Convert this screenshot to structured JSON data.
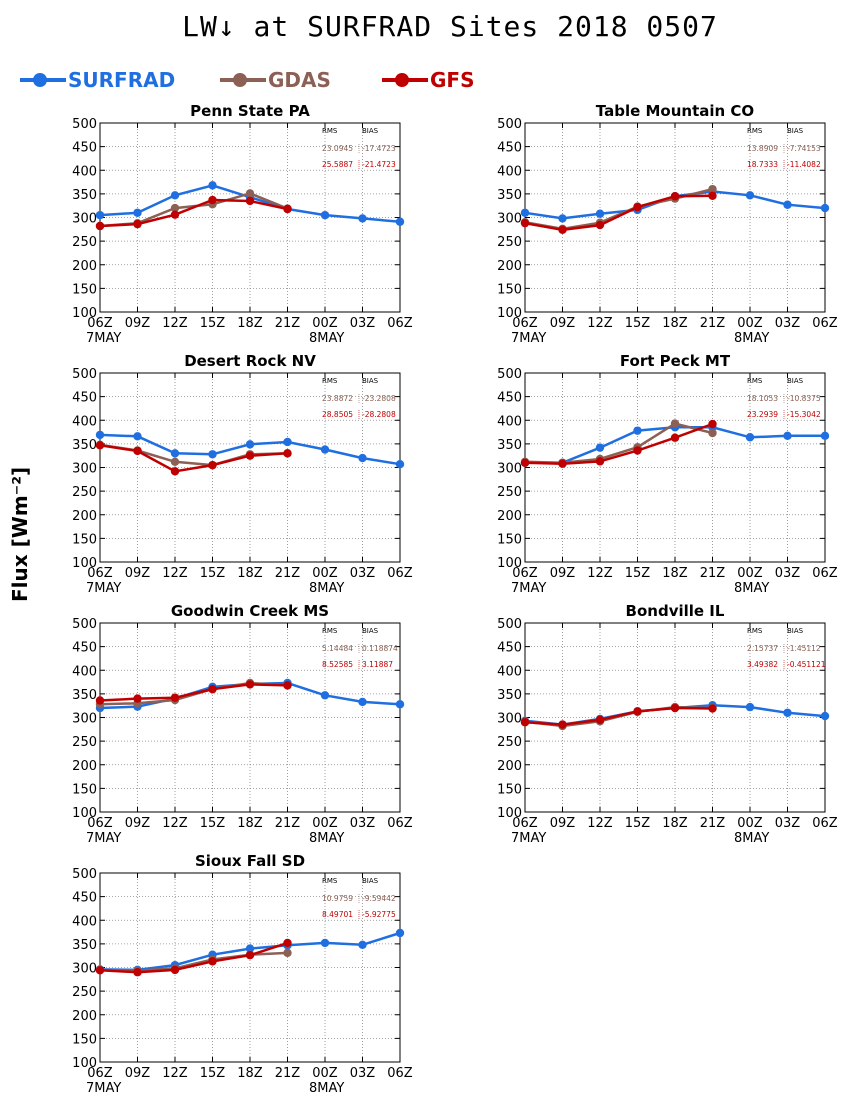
{
  "title": "LW↓ at SURFRAD Sites   2018 0507",
  "ylabel": "Flux [Wm⁻²]",
  "legend": [
    {
      "name": "SURFRAD",
      "color": "#1f6fe0"
    },
    {
      "name": "GDAS",
      "color": "#8c6054"
    },
    {
      "name": "GFS",
      "color": "#c00000"
    }
  ],
  "axis": {
    "x_ticks": [
      "06Z",
      "09Z",
      "12Z",
      "15Z",
      "18Z",
      "21Z",
      "00Z",
      "03Z",
      "06Z"
    ],
    "x_date_labels": [
      "7MAY",
      "8MAY"
    ],
    "y_ticks": [
      "100",
      "150",
      "200",
      "250",
      "300",
      "350",
      "400",
      "450",
      "500"
    ],
    "stats_headers": [
      "RMS",
      "BIAS"
    ]
  },
  "chart_data": [
    {
      "type": "line",
      "title": "Penn State PA",
      "x": [
        "06Z",
        "09Z",
        "12Z",
        "15Z",
        "18Z",
        "21Z",
        "00Z",
        "03Z",
        "06Z"
      ],
      "ylim": [
        100,
        500
      ],
      "grid": true,
      "stats": {
        "GDAS": {
          "rms": "23.0945",
          "bias": "-17.4723"
        },
        "GFS": {
          "rms": "25.5887",
          "bias": "-21.4723"
        }
      },
      "series": [
        {
          "name": "SURFRAD",
          "values": [
            305,
            310,
            347,
            368,
            343,
            318,
            305,
            298,
            291
          ]
        },
        {
          "name": "GDAS",
          "values": [
            282,
            288,
            320,
            328,
            351,
            319,
            null,
            null,
            null
          ]
        },
        {
          "name": "GFS",
          "values": [
            282,
            286,
            306,
            337,
            335,
            318,
            null,
            null,
            null
          ]
        }
      ]
    },
    {
      "type": "line",
      "title": "Table Mountain CO",
      "x": [
        "06Z",
        "09Z",
        "12Z",
        "15Z",
        "18Z",
        "21Z",
        "00Z",
        "03Z",
        "06Z"
      ],
      "ylim": [
        100,
        500
      ],
      "grid": true,
      "stats": {
        "GDAS": {
          "rms": "13.8909",
          "bias": "-7.74153"
        },
        "GFS": {
          "rms": "18.7333",
          "bias": "-11.4082"
        }
      },
      "series": [
        {
          "name": "SURFRAD",
          "values": [
            310,
            298,
            308,
            316,
            345,
            355,
            347,
            327,
            320
          ]
        },
        {
          "name": "GDAS",
          "values": [
            290,
            276,
            289,
            323,
            340,
            360,
            null,
            null,
            null
          ]
        },
        {
          "name": "GFS",
          "values": [
            288,
            274,
            284,
            322,
            345,
            346,
            null,
            null,
            null
          ]
        }
      ]
    },
    {
      "type": "line",
      "title": "Desert Rock NV",
      "x": [
        "06Z",
        "09Z",
        "12Z",
        "15Z",
        "18Z",
        "21Z",
        "00Z",
        "03Z",
        "06Z"
      ],
      "ylim": [
        100,
        500
      ],
      "grid": true,
      "stats": {
        "GDAS": {
          "rms": "23.8872",
          "bias": "-23.2808"
        },
        "GFS": {
          "rms": "28.8505",
          "bias": "-28.2808"
        }
      },
      "series": [
        {
          "name": "SURFRAD",
          "values": [
            369,
            366,
            330,
            328,
            349,
            354,
            338,
            320,
            307
          ]
        },
        {
          "name": "GDAS",
          "values": [
            348,
            336,
            312,
            305,
            328,
            330,
            null,
            null,
            null
          ]
        },
        {
          "name": "GFS",
          "values": [
            347,
            335,
            292,
            305,
            325,
            330,
            null,
            null,
            null
          ]
        }
      ]
    },
    {
      "type": "line",
      "title": "Fort Peck MT",
      "x": [
        "06Z",
        "09Z",
        "12Z",
        "15Z",
        "18Z",
        "21Z",
        "00Z",
        "03Z",
        "06Z"
      ],
      "ylim": [
        100,
        500
      ],
      "grid": true,
      "stats": {
        "GDAS": {
          "rms": "18.1053",
          "bias": "-10.8375"
        },
        "GFS": {
          "rms": "23.2939",
          "bias": "-15.3042"
        }
      },
      "series": [
        {
          "name": "SURFRAD",
          "values": [
            310,
            310,
            342,
            378,
            385,
            385,
            364,
            367,
            367
          ]
        },
        {
          "name": "GDAS",
          "values": [
            312,
            310,
            318,
            343,
            393,
            373,
            null,
            null,
            null
          ]
        },
        {
          "name": "GFS",
          "values": [
            310,
            308,
            313,
            336,
            363,
            392,
            null,
            null,
            null
          ]
        }
      ]
    },
    {
      "type": "line",
      "title": "Goodwin Creek MS",
      "x": [
        "06Z",
        "09Z",
        "12Z",
        "15Z",
        "18Z",
        "21Z",
        "00Z",
        "03Z",
        "06Z"
      ],
      "ylim": [
        100,
        500
      ],
      "grid": true,
      "stats": {
        "GDAS": {
          "rms": "5.14484",
          "bias": "0.118874"
        },
        "GFS": {
          "rms": "8.52585",
          "bias": "3.11887"
        }
      },
      "series": [
        {
          "name": "SURFRAD",
          "values": [
            320,
            323,
            340,
            365,
            371,
            373,
            347,
            333,
            328
          ]
        },
        {
          "name": "GDAS",
          "values": [
            328,
            330,
            337,
            360,
            373,
            368,
            null,
            null,
            null
          ]
        },
        {
          "name": "GFS",
          "values": [
            336,
            340,
            342,
            360,
            370,
            368,
            null,
            null,
            null
          ]
        }
      ]
    },
    {
      "type": "line",
      "title": "Bondville IL",
      "x": [
        "06Z",
        "09Z",
        "12Z",
        "15Z",
        "18Z",
        "21Z",
        "00Z",
        "03Z",
        "06Z"
      ],
      "ylim": [
        100,
        500
      ],
      "grid": true,
      "stats": {
        "GDAS": {
          "rms": "2.15737",
          "bias": "-1.45112"
        },
        "GFS": {
          "rms": "3.49382",
          "bias": "-0.451121"
        }
      },
      "series": [
        {
          "name": "SURFRAD",
          "values": [
            293,
            285,
            297,
            313,
            320,
            326,
            322,
            310,
            303
          ]
        },
        {
          "name": "GDAS",
          "values": [
            291,
            282,
            292,
            312,
            322,
            320,
            null,
            null,
            null
          ]
        },
        {
          "name": "GFS",
          "values": [
            290,
            285,
            295,
            313,
            320,
            319,
            null,
            null,
            null
          ]
        }
      ]
    },
    {
      "type": "line",
      "title": "Sioux Fall SD",
      "x": [
        "06Z",
        "09Z",
        "12Z",
        "15Z",
        "18Z",
        "21Z",
        "00Z",
        "03Z",
        "06Z"
      ],
      "ylim": [
        100,
        500
      ],
      "grid": true,
      "stats": {
        "GDAS": {
          "rms": "10.9759",
          "bias": "-9.59442"
        },
        "GFS": {
          "rms": "8.49701",
          "bias": "-5.92775"
        }
      },
      "series": [
        {
          "name": "SURFRAD",
          "values": [
            296,
            295,
            305,
            327,
            340,
            347,
            352,
            348,
            373
          ]
        },
        {
          "name": "GDAS",
          "values": [
            295,
            293,
            298,
            317,
            327,
            331,
            null,
            null,
            null
          ]
        },
        {
          "name": "GFS",
          "values": [
            294,
            290,
            295,
            313,
            326,
            352,
            null,
            null,
            null
          ]
        }
      ]
    }
  ]
}
